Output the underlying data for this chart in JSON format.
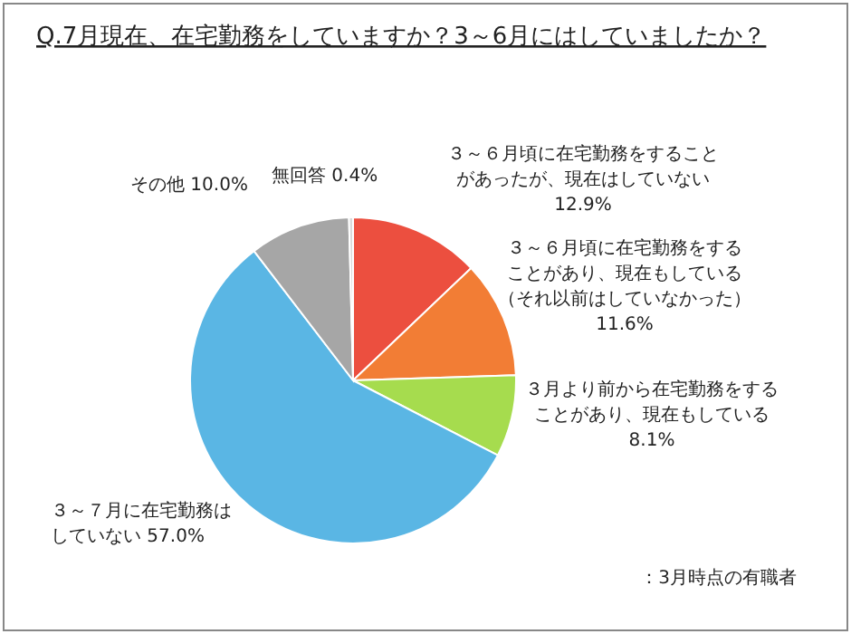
{
  "chart_data": {
    "type": "pie",
    "title": "Q.7月現在、在宅勤務をしていますか？3～6月にはしていましたか？",
    "categories": [
      "３～６月頃に在宅勤務をすることがあったが、現在はしていない",
      "３～６月頃に在宅勤務をすることがあり、現在もしている（それ以前はしていなかった）",
      "３月より前から在宅勤務をすることがあり、現在もしている",
      "３～７月に在宅勤務はしていない",
      "その他",
      "無回答"
    ],
    "values": [
      12.9,
      11.6,
      8.1,
      57.0,
      10.0,
      0.4
    ],
    "value_labels": [
      "12.9%",
      "11.6%",
      "8.1%",
      "57.0%",
      "10.0%",
      "0.4%"
    ],
    "colors": [
      "#ec4f3f",
      "#f27d35",
      "#a6dc4e",
      "#5ab6e4",
      "#a6a6a6",
      "#d9d9d9"
    ],
    "annotations": [
      "：3月時点の有職者"
    ]
  }
}
